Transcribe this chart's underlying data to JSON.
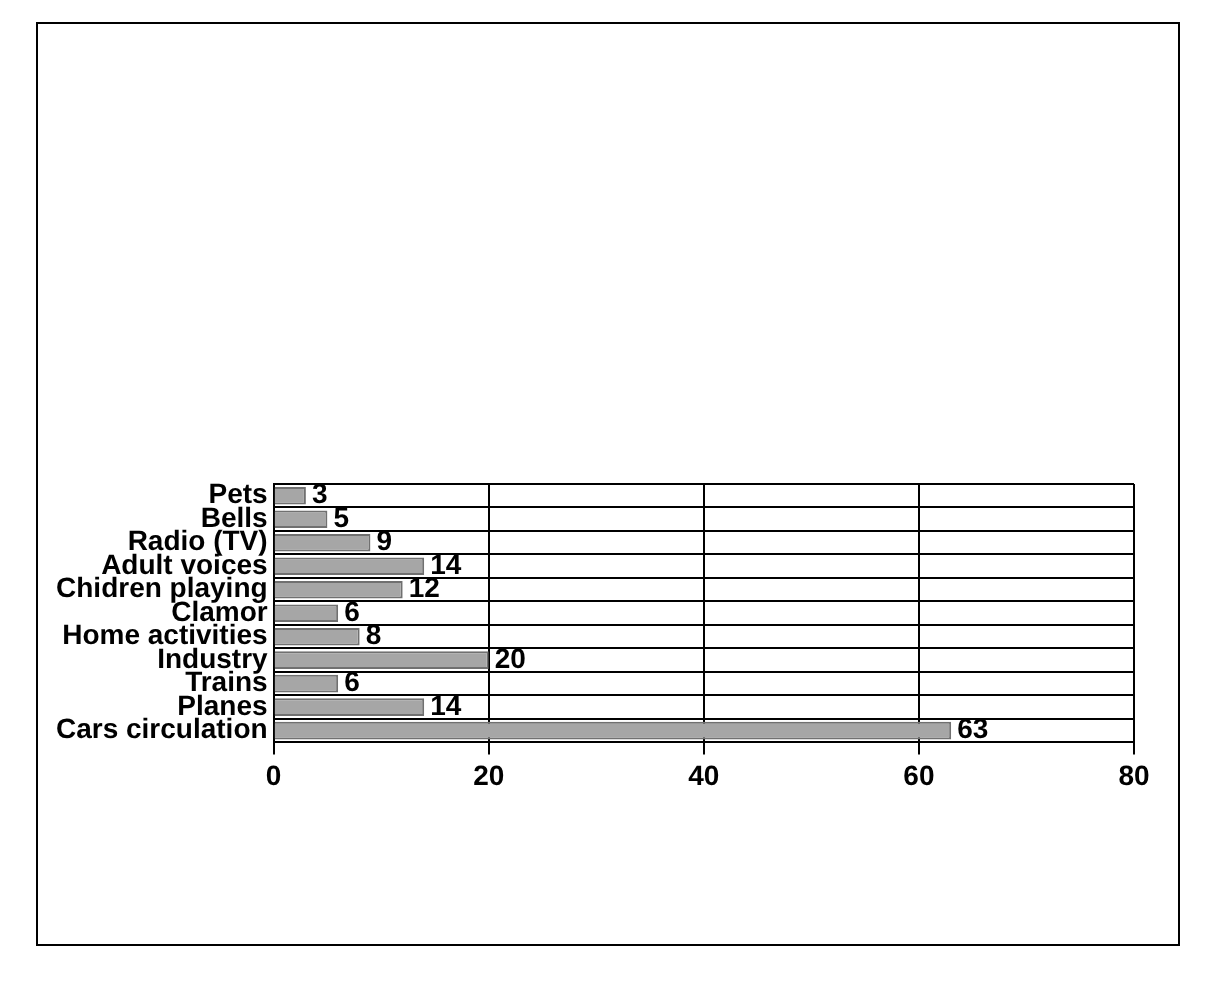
{
  "chart_data": {
    "type": "bar",
    "orientation": "horizontal",
    "categories": [
      "Pets",
      "Bells",
      "Radio (TV)",
      "Adult voices",
      "Chidren playing",
      "Clamor",
      "Home activities",
      "Industry",
      "Trains",
      "Planes",
      "Cars circulation"
    ],
    "values": [
      3,
      5,
      9,
      14,
      12,
      6,
      8,
      20,
      6,
      14,
      63
    ],
    "color": "#a6a6a6",
    "xlim": [
      0,
      80
    ],
    "xticks": [
      0,
      20,
      40,
      60,
      80
    ],
    "grid": true,
    "legend": false,
    "data_labels": true
  }
}
